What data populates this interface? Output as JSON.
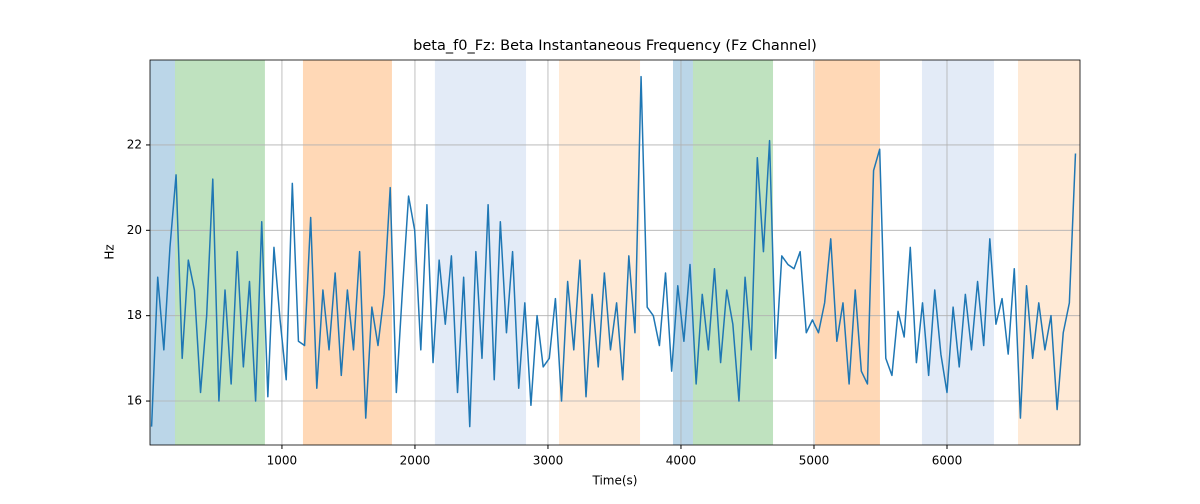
{
  "chart_data": {
    "type": "line",
    "title": "beta_f0_Fz: Beta Instantaneous Frequency (Fz Channel)",
    "x_label": "Time(s)",
    "y_label": "Hz",
    "color": "#1f77b4",
    "xlim": [
      8,
      7000
    ],
    "ylim": [
      14.97,
      23.99
    ],
    "xticks": [
      1000,
      2000,
      3000,
      4000,
      5000,
      6000
    ],
    "yticks": [
      16,
      18,
      20,
      22
    ],
    "grid": true,
    "spans": [
      {
        "start": 8,
        "end": 196,
        "color": "#1f77b4",
        "opacity": 0.3
      },
      {
        "start": 196,
        "end": 872,
        "color": "#2ca02c",
        "opacity": 0.3
      },
      {
        "start": 1158,
        "end": 1827,
        "color": "#ff7f0e",
        "opacity": 0.3
      },
      {
        "start": 2150,
        "end": 2835,
        "color": "#aec7e8",
        "opacity": 0.35
      },
      {
        "start": 3083,
        "end": 3692,
        "color": "#ffbb78",
        "opacity": 0.3
      },
      {
        "start": 3940,
        "end": 4090,
        "color": "#1f77b4",
        "opacity": 0.3
      },
      {
        "start": 4090,
        "end": 4692,
        "color": "#2ca02c",
        "opacity": 0.3
      },
      {
        "start": 5008,
        "end": 5496,
        "color": "#ff7f0e",
        "opacity": 0.3
      },
      {
        "start": 5812,
        "end": 6353,
        "color": "#aec7e8",
        "opacity": 0.35
      },
      {
        "start": 6534,
        "end": 7000,
        "color": "#ffbb78",
        "opacity": 0.3
      }
    ],
    "x": [
      20,
      66,
      112,
      158,
      204,
      250,
      296,
      342,
      388,
      434,
      480,
      526,
      572,
      618,
      664,
      710,
      756,
      802,
      848,
      894,
      940,
      986,
      1032,
      1078,
      1124,
      1170,
      1216,
      1262,
      1308,
      1354,
      1400,
      1446,
      1492,
      1538,
      1584,
      1630,
      1676,
      1722,
      1768,
      1814,
      1860,
      1906,
      1952,
      1998,
      2044,
      2090,
      2136,
      2182,
      2228,
      2274,
      2320,
      2366,
      2412,
      2458,
      2504,
      2550,
      2596,
      2642,
      2688,
      2734,
      2780,
      2826,
      2872,
      2918,
      2964,
      3010,
      3056,
      3102,
      3148,
      3194,
      3240,
      3286,
      3332,
      3378,
      3424,
      3470,
      3516,
      3562,
      3608,
      3654,
      3700,
      3746,
      3792,
      3838,
      3884,
      3930,
      3976,
      4022,
      4068,
      4114,
      4160,
      4206,
      4252,
      4298,
      4344,
      4390,
      4436,
      4482,
      4528,
      4574,
      4620,
      4666,
      4712,
      4758,
      4804,
      4850,
      4896,
      4942,
      4988,
      5034,
      5080,
      5126,
      5172,
      5218,
      5264,
      5310,
      5356,
      5402,
      5448,
      5494,
      5540,
      5586,
      5632,
      5678,
      5724,
      5770,
      5816,
      5862,
      5908,
      5954,
      6000,
      6046,
      6092,
      6138,
      6184,
      6230,
      6276,
      6322,
      6368,
      6414,
      6460,
      6506,
      6552,
      6598,
      6644,
      6690,
      6736,
      6782,
      6828,
      6874,
      6920,
      6966
    ],
    "values": [
      15.4,
      18.9,
      17.2,
      19.6,
      21.3,
      17.0,
      19.3,
      18.6,
      16.2,
      18.0,
      21.2,
      16.0,
      18.6,
      16.4,
      19.5,
      16.8,
      18.8,
      16.0,
      20.2,
      16.1,
      19.6,
      17.9,
      16.5,
      21.1,
      17.4,
      17.3,
      20.3,
      16.3,
      18.6,
      17.2,
      19.0,
      16.6,
      18.6,
      17.2,
      19.5,
      15.6,
      18.2,
      17.3,
      18.5,
      21.0,
      16.2,
      18.6,
      20.8,
      20.0,
      17.2,
      20.6,
      16.9,
      19.3,
      17.8,
      19.4,
      16.2,
      18.9,
      15.4,
      19.5,
      17.0,
      20.6,
      16.5,
      20.2,
      17.6,
      19.5,
      16.3,
      18.3,
      15.9,
      18.0,
      16.8,
      17.0,
      18.4,
      16.0,
      18.8,
      17.2,
      19.3,
      16.1,
      18.5,
      16.8,
      19.0,
      17.2,
      18.3,
      16.5,
      19.4,
      17.6,
      23.6,
      18.2,
      18.0,
      17.3,
      19.0,
      16.7,
      18.7,
      17.4,
      19.2,
      16.4,
      18.5,
      17.2,
      19.1,
      16.9,
      18.6,
      17.8,
      16.0,
      18.9,
      17.2,
      21.7,
      19.5,
      22.1,
      17.0,
      19.4,
      19.2,
      19.1,
      19.5,
      17.6,
      17.9,
      17.6,
      18.3,
      19.8,
      17.4,
      18.3,
      16.4,
      18.6,
      16.7,
      16.4,
      21.4,
      21.9,
      17.0,
      16.6,
      18.1,
      17.5,
      19.6,
      16.9,
      18.3,
      16.6,
      18.6,
      17.1,
      16.2,
      18.2,
      16.8,
      18.5,
      17.2,
      18.8,
      17.3,
      19.8,
      17.8,
      18.4,
      17.1,
      19.1,
      15.6,
      18.7,
      17.0,
      18.3,
      17.2,
      18.0,
      15.8,
      17.6,
      18.3,
      21.8
    ]
  }
}
